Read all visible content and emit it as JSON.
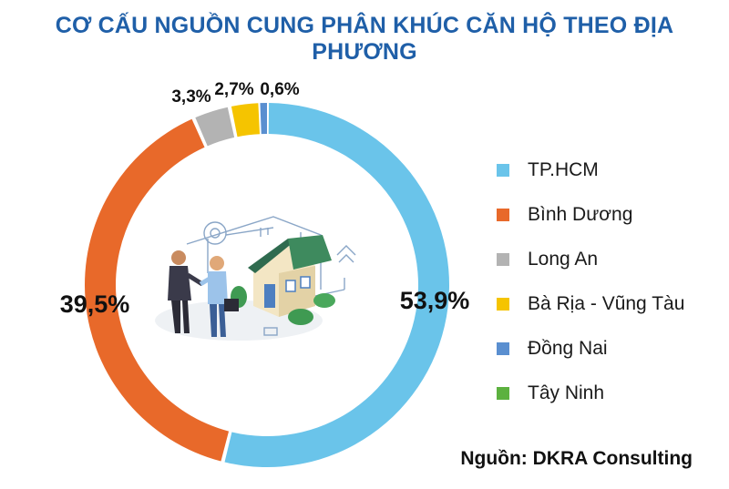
{
  "chart_data": {
    "type": "pie",
    "style": "donut",
    "title": "CƠ CẤU NGUỒN CUNG PHÂN KHÚC CĂN HỘ THEO ĐỊA PHƯƠNG",
    "categories": [
      "TP.HCM",
      "Bình Dương",
      "Long An",
      "Bà Rịa - Vũng Tàu",
      "Đồng Nai",
      "Tây Ninh"
    ],
    "values": [
      53.9,
      39.5,
      3.3,
      2.7,
      0.6,
      0
    ],
    "value_labels": [
      "53,9%",
      "39,5%",
      "3,3%",
      "2,7%",
      "0,6%",
      ""
    ],
    "colors": [
      "#6ac4ea",
      "#e8692a",
      "#b3b3b3",
      "#f5c400",
      "#5a8fd0",
      "#5cb13f"
    ],
    "legend_position": "right",
    "source": "Nguồn: DKRA Consulting"
  }
}
